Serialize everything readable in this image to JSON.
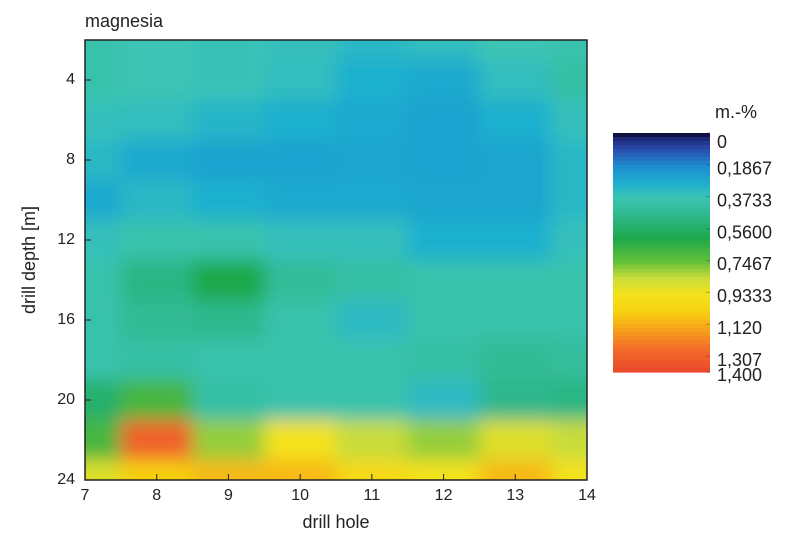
{
  "chart_data": {
    "type": "contour",
    "title": "magnesia",
    "x_label": "drill hole",
    "y_label": "drill depth [m]",
    "colorbar_label": "m.-%",
    "x": [
      7,
      8,
      9,
      10,
      11,
      12,
      13,
      14
    ],
    "y": [
      2,
      4,
      6,
      8,
      10,
      12,
      14,
      16,
      18,
      20,
      22,
      24
    ],
    "z": [
      [
        0.4,
        0.38,
        0.37,
        0.36,
        0.33,
        0.35,
        0.38,
        0.4
      ],
      [
        0.4,
        0.38,
        0.37,
        0.35,
        0.3,
        0.28,
        0.35,
        0.42
      ],
      [
        0.36,
        0.35,
        0.32,
        0.3,
        0.28,
        0.26,
        0.3,
        0.36
      ],
      [
        0.33,
        0.28,
        0.26,
        0.26,
        0.27,
        0.26,
        0.27,
        0.33
      ],
      [
        0.28,
        0.33,
        0.3,
        0.28,
        0.28,
        0.27,
        0.27,
        0.33
      ],
      [
        0.36,
        0.4,
        0.4,
        0.36,
        0.36,
        0.3,
        0.3,
        0.36
      ],
      [
        0.4,
        0.5,
        0.62,
        0.45,
        0.42,
        0.4,
        0.4,
        0.4
      ],
      [
        0.4,
        0.46,
        0.48,
        0.4,
        0.34,
        0.4,
        0.4,
        0.4
      ],
      [
        0.4,
        0.42,
        0.4,
        0.4,
        0.4,
        0.42,
        0.46,
        0.44
      ],
      [
        0.55,
        0.7,
        0.42,
        0.4,
        0.4,
        0.34,
        0.48,
        0.5
      ],
      [
        0.7,
        1.3,
        0.8,
        0.95,
        0.85,
        0.8,
        0.9,
        0.85
      ],
      [
        0.9,
        1.05,
        1.1,
        1.1,
        1.0,
        0.95,
        1.1,
        0.95
      ]
    ],
    "xlim": [
      7,
      14
    ],
    "ylim": [
      2,
      24
    ],
    "y_reversed": true,
    "xticks": [
      7,
      8,
      9,
      10,
      11,
      12,
      13,
      14
    ],
    "yticks": [
      4,
      8,
      12,
      16,
      20,
      24
    ],
    "zlim": [
      0,
      1.4
    ],
    "zticks": [
      0,
      {
        "value": 0.1867,
        "label": "0,1867"
      },
      {
        "value": 0.3733,
        "label": "0,3733"
      },
      {
        "value": 0.56,
        "label": "0,5600"
      },
      {
        "value": 0.7467,
        "label": "0,7467"
      },
      {
        "value": 0.9333,
        "label": "0,9333"
      },
      {
        "value": 1.12,
        "label": "1,120"
      },
      {
        "value": 1.307,
        "label": "1,307"
      },
      {
        "value": 1.4,
        "label": "1,400"
      }
    ],
    "colorscale": [
      [
        0,
        "#000000"
      ],
      [
        0.02,
        "#1b1f6e"
      ],
      [
        0.1,
        "#2a4fb0"
      ],
      [
        0.2,
        "#1d8fd0"
      ],
      [
        0.3,
        "#1fb0cf"
      ],
      [
        0.38,
        "#3cc4b4"
      ],
      [
        0.5,
        "#2bb684"
      ],
      [
        0.62,
        "#1fa84a"
      ],
      [
        0.75,
        "#5fbf3a"
      ],
      [
        0.85,
        "#c8dc3a"
      ],
      [
        0.95,
        "#f4e21c"
      ],
      [
        1.05,
        "#f7d010"
      ],
      [
        1.15,
        "#f7a21a"
      ],
      [
        1.27,
        "#f26a2a"
      ],
      [
        1.4,
        "#e9482a"
      ]
    ]
  }
}
